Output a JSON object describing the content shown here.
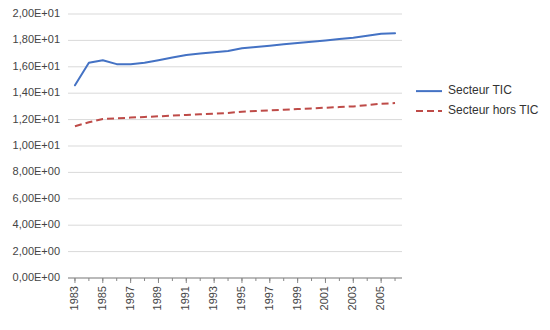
{
  "chart_data": {
    "type": "line",
    "x": [
      1983,
      1984,
      1985,
      1986,
      1987,
      1988,
      1989,
      1990,
      1991,
      1992,
      1993,
      1994,
      1995,
      1996,
      1997,
      1998,
      1999,
      2000,
      2001,
      2002,
      2003,
      2004,
      2005,
      2006
    ],
    "series": [
      {
        "name": "Secteur TIC",
        "color": "#4472C4",
        "line_style": "solid",
        "values": [
          14.6,
          16.3,
          16.5,
          16.2,
          16.2,
          16.3,
          16.5,
          16.7,
          16.9,
          17.0,
          17.1,
          17.2,
          17.4,
          17.5,
          17.6,
          17.7,
          17.8,
          17.9,
          18.0,
          18.1,
          18.2,
          18.35,
          18.5,
          18.55
        ]
      },
      {
        "name": "Secteur hors TIC",
        "color": "#BE4B48",
        "line_style": "dashed",
        "values": [
          11.5,
          11.8,
          12.05,
          12.1,
          12.15,
          12.2,
          12.25,
          12.3,
          12.35,
          12.4,
          12.45,
          12.5,
          12.6,
          12.65,
          12.7,
          12.75,
          12.8,
          12.85,
          12.9,
          12.95,
          13.0,
          13.1,
          13.2,
          13.25
        ]
      }
    ],
    "xlim": [
      1982.5,
      2006.5
    ],
    "xticks": [
      1983,
      1985,
      1987,
      1989,
      1991,
      1993,
      1995,
      1997,
      1999,
      2001,
      2003,
      2005
    ],
    "ylim": [
      0,
      20
    ],
    "yticks": [
      {
        "value": 0,
        "label": "0,00E+00"
      },
      {
        "value": 2,
        "label": "2,00E+00"
      },
      {
        "value": 4,
        "label": "4,00E+00"
      },
      {
        "value": 6,
        "label": "6,00E+00"
      },
      {
        "value": 8,
        "label": "8,00E+00"
      },
      {
        "value": 10,
        "label": "1,00E+01"
      },
      {
        "value": 12,
        "label": "1,20E+01"
      },
      {
        "value": 14,
        "label": "1,40E+01"
      },
      {
        "value": 16,
        "label": "1,60E+01"
      },
      {
        "value": 18,
        "label": "1,80E+01"
      },
      {
        "value": 20,
        "label": "2,00E+01"
      }
    ],
    "grid": "y",
    "legend": "right"
  }
}
